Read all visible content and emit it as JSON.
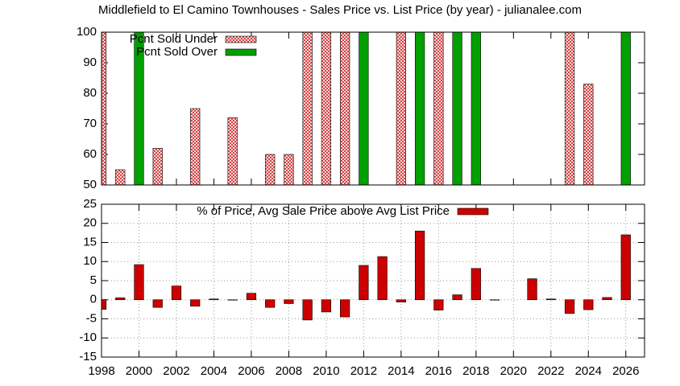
{
  "chart_data": [
    {
      "type": "bar",
      "title": "Middlefield to El Camino Townhouses - Sales Price vs. List Price (by year) - julianalee.com",
      "x": [
        1998,
        1999,
        2000,
        2001,
        2002,
        2003,
        2004,
        2005,
        2006,
        2007,
        2008,
        2009,
        2010,
        2011,
        2012,
        2013,
        2014,
        2015,
        2016,
        2017,
        2018,
        2019,
        2020,
        2021,
        2022,
        2023,
        2024,
        2025,
        2026
      ],
      "series": [
        {
          "name": "Pcnt Sold Under",
          "color": "#cc2020",
          "hatch": true,
          "values": [
            100,
            55,
            null,
            62,
            null,
            75,
            null,
            72,
            null,
            60,
            60,
            100,
            100,
            100,
            null,
            null,
            100,
            null,
            100,
            null,
            null,
            null,
            null,
            null,
            null,
            100,
            83,
            null,
            null
          ]
        },
        {
          "name": "Pcnt Sold Over",
          "color": "#00a000",
          "values": [
            null,
            null,
            100,
            null,
            null,
            null,
            null,
            null,
            null,
            null,
            null,
            null,
            null,
            null,
            100,
            null,
            null,
            100,
            null,
            100,
            100,
            null,
            null,
            null,
            null,
            null,
            null,
            null,
            100
          ]
        }
      ],
      "xlim": [
        1998,
        2027
      ],
      "xticks": [
        1998,
        2000,
        2002,
        2004,
        2006,
        2008,
        2010,
        2012,
        2014,
        2016,
        2018,
        2020,
        2022,
        2024,
        2026
      ],
      "xtick_labels": false,
      "ylim": [
        50,
        100
      ],
      "yticks": [
        50,
        60,
        70,
        80,
        90,
        100
      ],
      "grid": false,
      "legend": "upper left"
    },
    {
      "type": "bar",
      "x": [
        1998,
        1999,
        2000,
        2001,
        2002,
        2003,
        2004,
        2005,
        2006,
        2007,
        2008,
        2009,
        2010,
        2011,
        2012,
        2013,
        2014,
        2015,
        2016,
        2017,
        2018,
        2019,
        2020,
        2021,
        2022,
        2023,
        2024,
        2025,
        2026
      ],
      "series": [
        {
          "name": "% of Price, Avg Sale Price above Avg List Price",
          "color": "#cc0000",
          "values": [
            -2.5,
            0.5,
            9.2,
            -2,
            3.6,
            -1.7,
            0.2,
            -0.1,
            1.7,
            -2,
            -1,
            -5.3,
            -3.2,
            -4.5,
            9,
            11.3,
            -0.6,
            18,
            -2.7,
            1.3,
            8.2,
            -0.1,
            null,
            5.5,
            0.2,
            -3.6,
            -2.6,
            0.6,
            17
          ]
        }
      ],
      "xlim": [
        1998,
        2027
      ],
      "xticks": [
        1998,
        2000,
        2002,
        2004,
        2006,
        2008,
        2010,
        2012,
        2014,
        2016,
        2018,
        2020,
        2022,
        2024,
        2026
      ],
      "xtick_labels": true,
      "ylim": [
        -15,
        25
      ],
      "yticks": [
        -15,
        -10,
        -5,
        0,
        5,
        10,
        15,
        20,
        25
      ],
      "grid": true,
      "legend": "upper center"
    }
  ]
}
